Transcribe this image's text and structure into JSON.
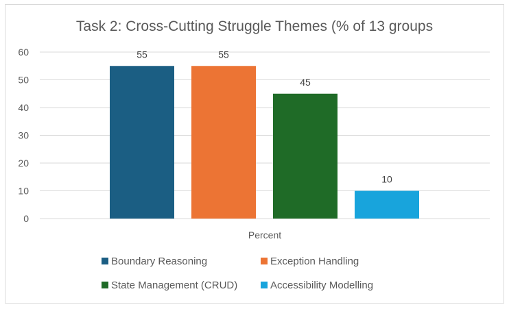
{
  "chart_data": {
    "type": "bar",
    "title": "Task 2: Cross-Cutting Struggle Themes (% of 13 groups",
    "categories": [
      "Percent"
    ],
    "series": [
      {
        "name": "Boundary Reasoning",
        "values": [
          55
        ],
        "color": "#1b5e83"
      },
      {
        "name": "Exception Handling",
        "values": [
          55
        ],
        "color": "#ec7434"
      },
      {
        "name": "State Management (CRUD)",
        "values": [
          45
        ],
        "color": "#1f6b27"
      },
      {
        "name": "Accessibility Modelling",
        "values": [
          10
        ],
        "color": "#18a4dc"
      }
    ],
    "yticks": [
      "0",
      "10",
      "20",
      "30",
      "40",
      "50",
      "60"
    ],
    "ylim": [
      0,
      60
    ],
    "grid": true,
    "data_labels": true,
    "legend_position": "bottom"
  }
}
